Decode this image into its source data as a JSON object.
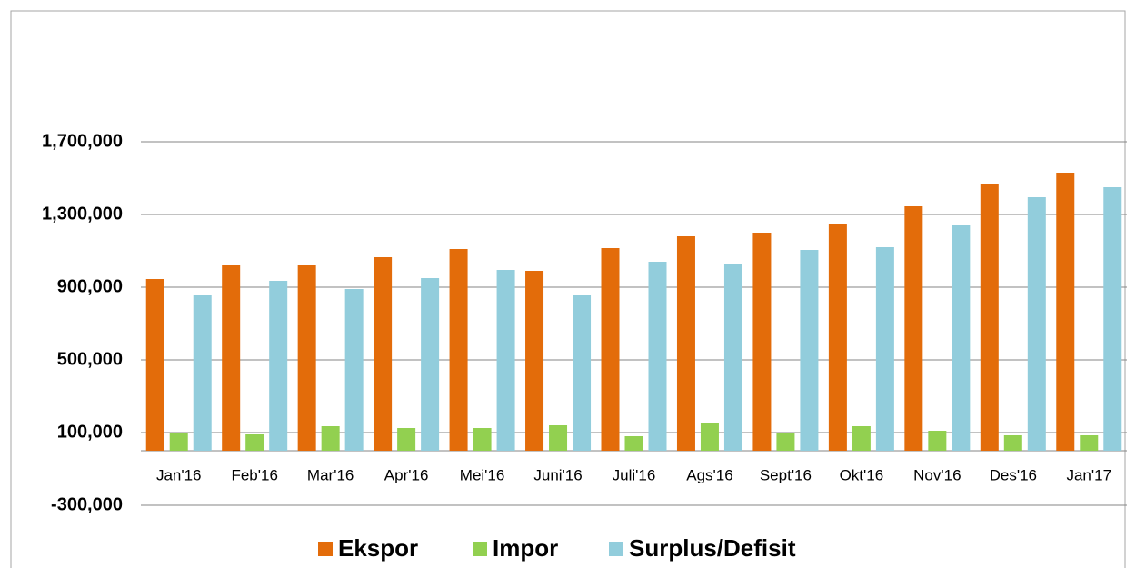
{
  "chart_data": {
    "type": "bar",
    "categories": [
      "Jan'16",
      "Feb'16",
      "Mar'16",
      "Apr'16",
      "Mei'16",
      "Juni'16",
      "Juli'16",
      "Ags'16",
      "Sept'16",
      "Okt'16",
      "Nov'16",
      "Des'16",
      "Jan'17"
    ],
    "series": [
      {
        "name": "Ekspor",
        "color": "#e36c0a",
        "values": [
          945000,
          1020000,
          1020000,
          1065000,
          1110000,
          990000,
          1115000,
          1180000,
          1200000,
          1250000,
          1345000,
          1470000,
          1530000
        ]
      },
      {
        "name": "Impor",
        "color": "#92d050",
        "values": [
          95000,
          90000,
          135000,
          125000,
          125000,
          140000,
          80000,
          155000,
          100000,
          135000,
          110000,
          85000,
          85000
        ]
      },
      {
        "name": "Surplus/Defisit",
        "color": "#92cddc",
        "values": [
          855000,
          935000,
          890000,
          950000,
          995000,
          855000,
          1040000,
          1030000,
          1105000,
          1120000,
          1240000,
          1395000,
          1450000
        ]
      }
    ],
    "ylim": [
      -300000,
      2100000
    ],
    "yticks": [
      {
        "value": -300000,
        "label": "-300,000"
      },
      {
        "value": 100000,
        "label": "100,000"
      },
      {
        "value": 500000,
        "label": "500,000"
      },
      {
        "value": 900000,
        "label": "900,000"
      },
      {
        "value": 1300000,
        "label": "1,300,000"
      },
      {
        "value": 1700000,
        "label": "1,700,000"
      }
    ],
    "grid": true,
    "legend": "bottom"
  }
}
